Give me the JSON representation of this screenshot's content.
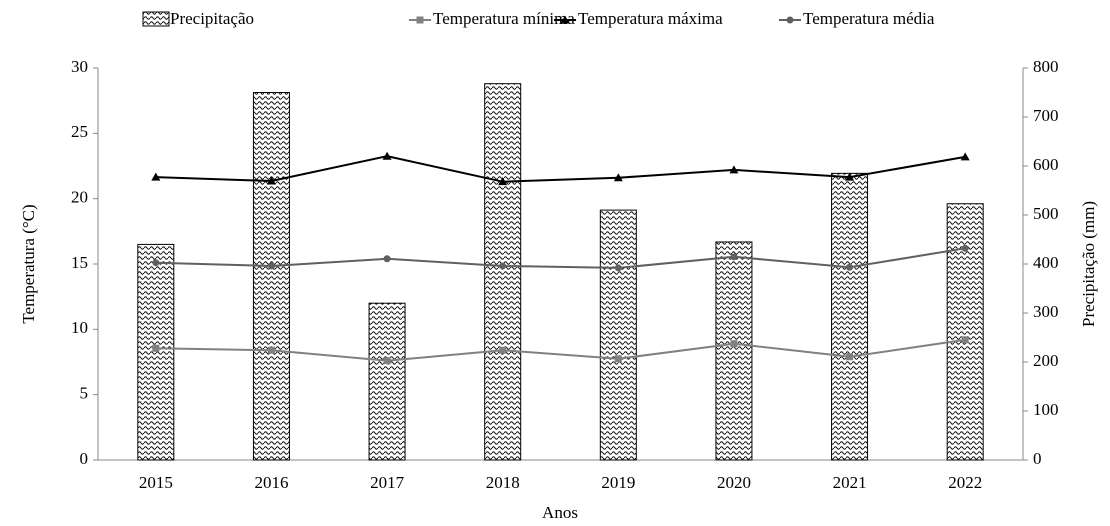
{
  "chart_data": {
    "type": "bar",
    "x_label": "Anos",
    "y_label": "Temperatura (°C)",
    "y2_label": "Precipitação (mm)",
    "categories": [
      "2015",
      "2016",
      "2017",
      "2018",
      "2019",
      "2020",
      "2021",
      "2022"
    ],
    "ylim": [
      0,
      30
    ],
    "yticks": [
      0,
      5,
      10,
      15,
      20,
      25,
      30
    ],
    "y2lim": [
      0,
      800
    ],
    "y2ticks": [
      0,
      100,
      200,
      300,
      400,
      500,
      600,
      700,
      800
    ],
    "series": [
      {
        "name": "Precipitação",
        "type": "bar",
        "axis": "y2",
        "color": "#000000",
        "values": [
          440,
          750,
          320,
          768,
          510,
          445,
          585,
          523
        ]
      },
      {
        "name": "Temperatura mínima",
        "type": "line",
        "marker": "square",
        "color": "#808080",
        "values": [
          8.55,
          8.4,
          7.6,
          8.4,
          7.75,
          8.9,
          7.9,
          9.2
        ]
      },
      {
        "name": "Temperatura máxima",
        "type": "line",
        "marker": "triangle",
        "color": "#000000",
        "values": [
          21.65,
          21.35,
          23.25,
          21.3,
          21.6,
          22.2,
          21.65,
          23.2
        ]
      },
      {
        "name": "Temperatura média",
        "type": "line",
        "marker": "circle",
        "color": "#606060",
        "values": [
          15.1,
          14.85,
          15.4,
          14.85,
          14.7,
          15.55,
          14.75,
          16.2
        ]
      }
    ]
  }
}
